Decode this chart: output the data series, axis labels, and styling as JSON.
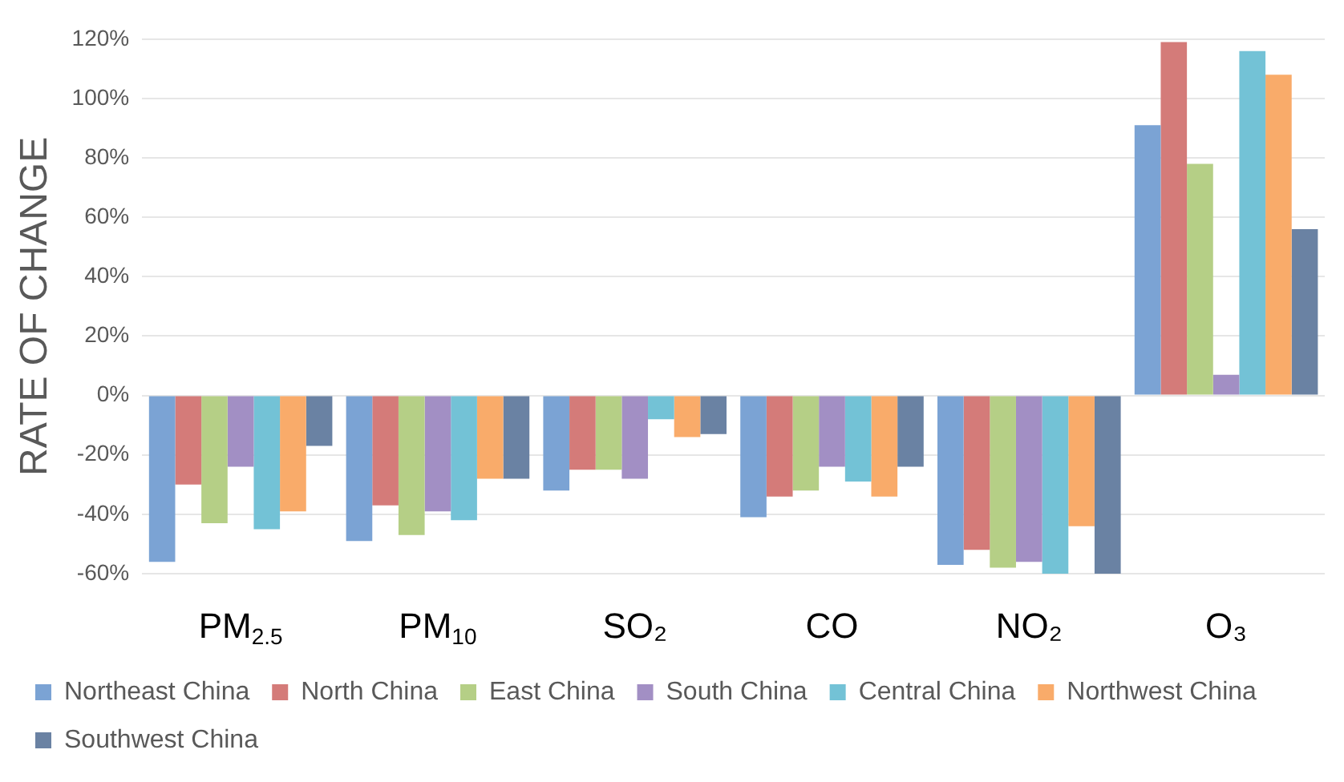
{
  "chart_data": {
    "type": "bar",
    "ylabel": "RATE OF CHANGE",
    "categories": [
      "PM$_{2.5}$",
      "PM$_{10}$",
      "SO₂",
      "CO",
      "NO₂",
      "O₃"
    ],
    "series": [
      {
        "name": "Northeast China",
        "color": "#7ba3d4",
        "values": [
          -56,
          -49,
          -32,
          -41,
          -57,
          91
        ]
      },
      {
        "name": "North China",
        "color": "#d47b79",
        "values": [
          -30,
          -37,
          -25,
          -34,
          -52,
          119
        ]
      },
      {
        "name": "East China",
        "color": "#b5cf86",
        "values": [
          -43,
          -47,
          -25,
          -32,
          -58,
          78
        ]
      },
      {
        "name": "South China",
        "color": "#a28fc4",
        "values": [
          -24,
          -39,
          -28,
          -24,
          -56,
          7
        ]
      },
      {
        "name": "Central China",
        "color": "#73c2d6",
        "values": [
          -45,
          -42,
          -8,
          -29,
          -60,
          116
        ]
      },
      {
        "name": "Northwest China",
        "color": "#f9ab6a",
        "values": [
          -39,
          -28,
          -14,
          -34,
          -44,
          108
        ]
      },
      {
        "name": "Southwest China",
        "color": "#6a82a3",
        "values": [
          -17,
          -28,
          -13,
          -24,
          -60,
          56
        ]
      }
    ],
    "ylim": [
      -60,
      120
    ],
    "yticks": [
      {
        "value": -60,
        "label": "-60%"
      },
      {
        "value": -40,
        "label": "-40%"
      },
      {
        "value": -20,
        "label": "-20%"
      },
      {
        "value": 0,
        "label": "0%"
      },
      {
        "value": 20,
        "label": "20%"
      },
      {
        "value": 40,
        "label": "40%"
      },
      {
        "value": 60,
        "label": "60%"
      },
      {
        "value": 80,
        "label": "80%"
      },
      {
        "value": 100,
        "label": "100%"
      },
      {
        "value": 120,
        "label": "120%"
      }
    ],
    "grid": "y",
    "legend": "bottom"
  }
}
